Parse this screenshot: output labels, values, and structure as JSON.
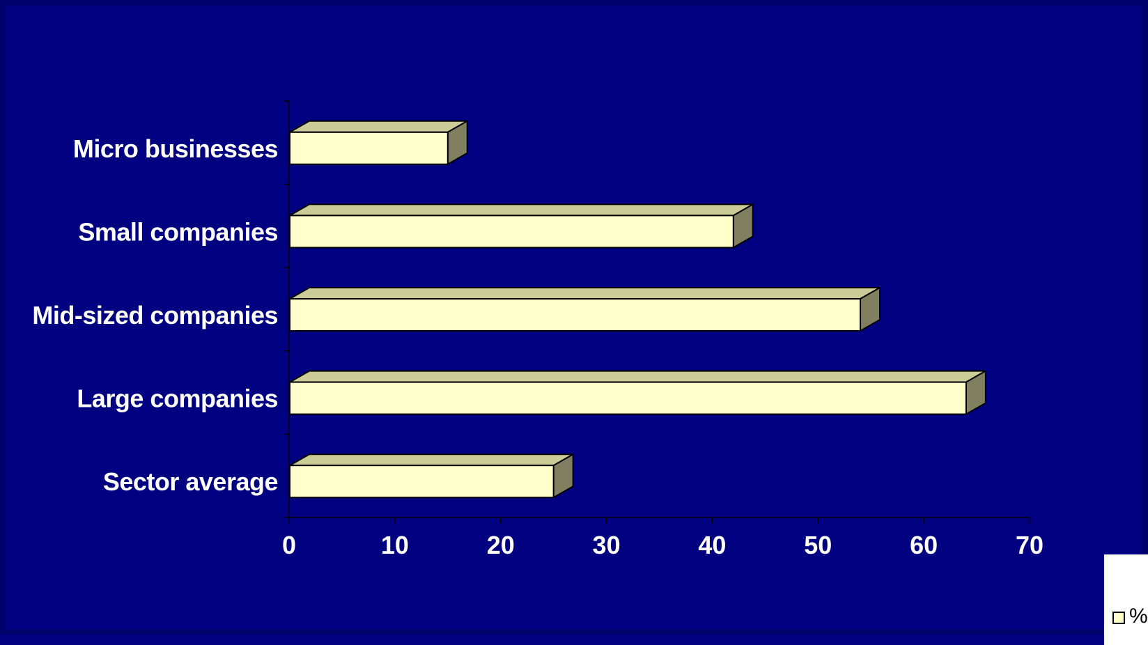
{
  "chart_data": {
    "type": "bar",
    "orientation": "horizontal",
    "style": "3d",
    "categories": [
      "Micro businesses",
      "Small companies",
      "Mid-sized companies",
      "Large companies",
      "Sector average"
    ],
    "series": [
      {
        "name": "%",
        "values": [
          15,
          42,
          54,
          64,
          25
        ]
      }
    ],
    "xlim": [
      0,
      70
    ],
    "xticks": [
      0,
      10,
      20,
      30,
      40,
      50,
      60,
      70
    ],
    "grid": false,
    "legend": "bottom-right",
    "colors": {
      "background": "#000080",
      "bar_front": "#ffffcc",
      "bar_top": "#cccc99",
      "bar_side": "#808060",
      "text": "#ffffff"
    }
  }
}
